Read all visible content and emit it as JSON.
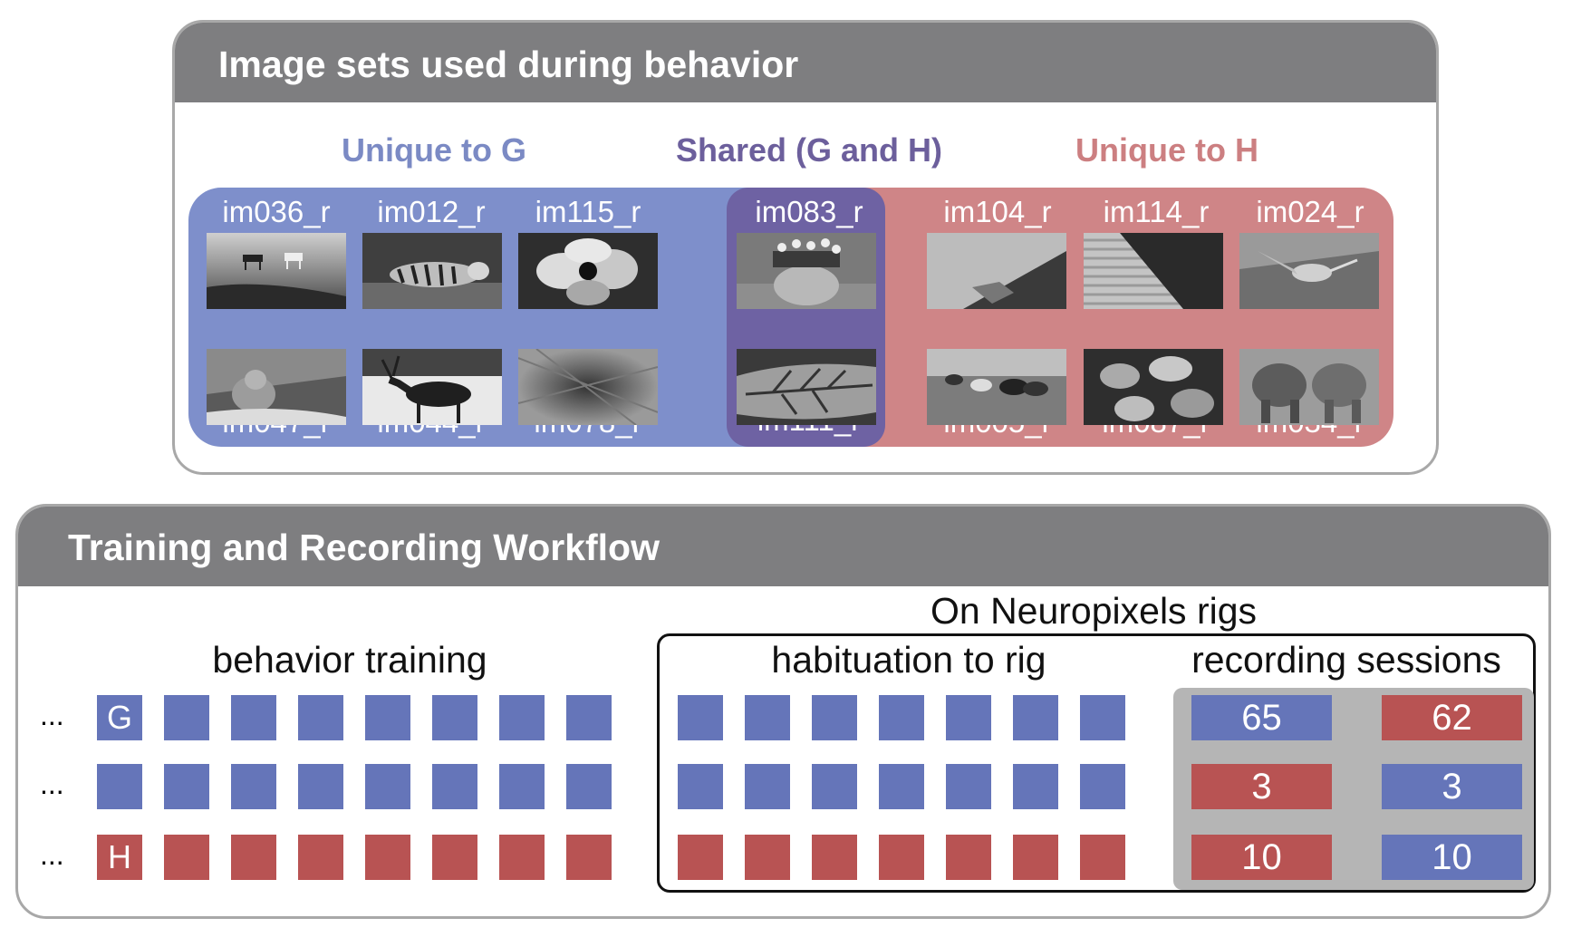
{
  "image_sets_panel": {
    "title": "Image sets used during behavior",
    "groups": {
      "unique_g": {
        "title": "Unique to G",
        "title_color": "#7b8ac4",
        "fill_color": "#7e8fcb",
        "images": [
          {
            "name": "im036_r",
            "icon": "horses-field"
          },
          {
            "name": "im012_r",
            "icon": "tiger-water"
          },
          {
            "name": "im115_r",
            "icon": "flower-closeup"
          },
          {
            "name": "im047_r",
            "icon": "lynx"
          },
          {
            "name": "im044_r",
            "icon": "elk"
          },
          {
            "name": "im078_r",
            "icon": "rocky-ground"
          }
        ]
      },
      "shared": {
        "title": "Shared (G and H)",
        "title_color": "#6c5f9c",
        "fill_color": "#6e62a3",
        "images": [
          {
            "name": "im083_r",
            "icon": "flower-pot"
          },
          {
            "name": "im111_r",
            "icon": "leaf"
          }
        ]
      },
      "unique_h": {
        "title": "Unique to H",
        "title_color": "#cc7f81",
        "fill_color": "#cf8587",
        "images": [
          {
            "name": "im104_r",
            "icon": "rock-wall"
          },
          {
            "name": "im114_r",
            "icon": "striped-fabric"
          },
          {
            "name": "im024_r",
            "icon": "hummingbird"
          },
          {
            "name": "im005_r",
            "icon": "cattle-field"
          },
          {
            "name": "im087_r",
            "icon": "leaves"
          },
          {
            "name": "im034_r",
            "icon": "elephants"
          }
        ]
      }
    }
  },
  "workflow_panel": {
    "title": "Training and Recording Workflow",
    "labels": {
      "behavior_training": "behavior training",
      "on_neuropixels": "On Neuropixels rigs",
      "habituation": "habituation to rig",
      "recording_sessions": "recording sessions"
    },
    "rows": [
      {
        "ellipsis": "...",
        "first_letter": "G",
        "training_color": "blue",
        "habituation_color": "blue",
        "sessions": [
          {
            "value": "65",
            "color": "blue"
          },
          {
            "value": "62",
            "color": "red"
          }
        ]
      },
      {
        "ellipsis": "...",
        "first_letter": "",
        "training_color": "blue",
        "habituation_color": "blue",
        "sessions": [
          {
            "value": "3",
            "color": "red"
          },
          {
            "value": "3",
            "color": "blue"
          }
        ]
      },
      {
        "ellipsis": "...",
        "first_letter": "H",
        "training_color": "red",
        "habituation_color": "red",
        "sessions": [
          {
            "value": "10",
            "color": "red"
          },
          {
            "value": "10",
            "color": "blue"
          }
        ]
      }
    ],
    "colors": {
      "blue": "#6575b9",
      "red": "#b85353",
      "recording_bg": "#b5b5b5"
    }
  }
}
